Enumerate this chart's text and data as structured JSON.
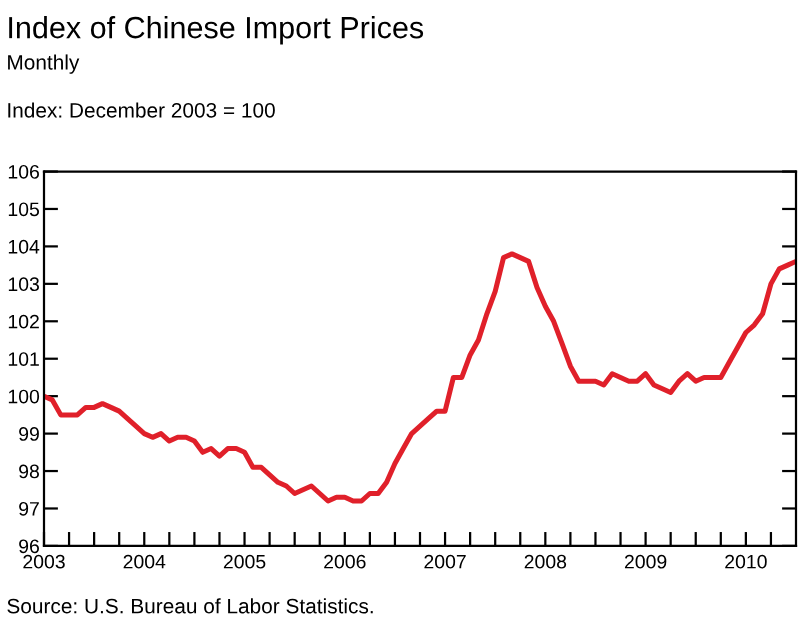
{
  "chart_data": {
    "type": "line",
    "title": "Index of Chinese Import Prices",
    "subtitle": "Monthly",
    "annotations": [
      "Index: December 2003 = 100",
      "Source: U.S. Bureau of Labor Statistics."
    ],
    "series": [
      {
        "color": "#e0202a",
        "x": [
          2003.0,
          2003.083,
          2003.167,
          2003.25,
          2003.333,
          2003.417,
          2003.5,
          2003.583,
          2003.667,
          2003.75,
          2003.833,
          2003.917,
          2004.0,
          2004.083,
          2004.167,
          2004.25,
          2004.333,
          2004.417,
          2004.5,
          2004.583,
          2004.667,
          2004.75,
          2004.833,
          2004.917,
          2005.0,
          2005.083,
          2005.167,
          2005.25,
          2005.333,
          2005.417,
          2005.5,
          2005.583,
          2005.667,
          2005.75,
          2005.833,
          2005.917,
          2006.0,
          2006.083,
          2006.167,
          2006.25,
          2006.333,
          2006.417,
          2006.5,
          2006.583,
          2006.667,
          2006.75,
          2006.833,
          2006.917,
          2007.0,
          2007.083,
          2007.167,
          2007.25,
          2007.333,
          2007.417,
          2007.5,
          2007.583,
          2007.667,
          2007.75,
          2007.833,
          2007.917,
          2008.0,
          2008.083,
          2008.167,
          2008.25,
          2008.333,
          2008.417,
          2008.5,
          2008.583,
          2008.667,
          2008.75,
          2008.833,
          2008.917,
          2009.0,
          2009.083,
          2009.167,
          2009.25,
          2009.333,
          2009.417,
          2009.5,
          2009.583,
          2009.667,
          2009.75,
          2009.833,
          2009.917,
          2010.0,
          2010.083,
          2010.167,
          2010.25,
          2010.333,
          2010.417,
          2010.5
        ],
        "values": [
          100.0,
          99.9,
          99.5,
          99.5,
          99.5,
          99.7,
          99.7,
          99.8,
          99.7,
          99.6,
          99.4,
          99.2,
          99.0,
          98.9,
          99.0,
          98.8,
          98.9,
          98.9,
          98.8,
          98.5,
          98.6,
          98.4,
          98.6,
          98.6,
          98.5,
          98.1,
          98.1,
          97.9,
          97.7,
          97.6,
          97.4,
          97.5,
          97.6,
          97.4,
          97.2,
          97.3,
          97.3,
          97.2,
          97.2,
          97.4,
          97.4,
          97.7,
          98.2,
          98.6,
          99.0,
          99.2,
          99.4,
          99.6,
          99.6,
          100.5,
          100.5,
          101.1,
          101.5,
          102.2,
          102.8,
          103.7,
          103.8,
          103.7,
          103.6,
          102.9,
          102.4,
          102.0,
          101.4,
          100.8,
          100.4,
          100.4,
          100.4,
          100.3,
          100.6,
          100.5,
          100.4,
          100.4,
          100.6,
          100.3,
          100.2,
          100.1,
          100.4,
          100.6,
          100.4,
          100.5,
          100.5,
          100.5,
          100.9,
          101.3,
          101.7,
          101.9,
          102.2,
          103.0,
          103.4,
          103.5,
          103.6
        ]
      }
    ],
    "xlim": [
      2003,
      2010.5
    ],
    "xticks": [
      2003,
      {
        "value": 2003.25,
        "label": null
      },
      {
        "value": 2003.5,
        "label": null
      },
      {
        "value": 2003.75,
        "label": null
      },
      2004,
      {
        "value": 2004.25,
        "label": null
      },
      {
        "value": 2004.5,
        "label": null
      },
      {
        "value": 2004.75,
        "label": null
      },
      2005,
      {
        "value": 2005.25,
        "label": null
      },
      {
        "value": 2005.5,
        "label": null
      },
      {
        "value": 2005.75,
        "label": null
      },
      2006,
      {
        "value": 2006.25,
        "label": null
      },
      {
        "value": 2006.5,
        "label": null
      },
      {
        "value": 2006.75,
        "label": null
      },
      2007,
      {
        "value": 2007.25,
        "label": null
      },
      {
        "value": 2007.5,
        "label": null
      },
      {
        "value": 2007.75,
        "label": null
      },
      2008,
      {
        "value": 2008.25,
        "label": null
      },
      {
        "value": 2008.5,
        "label": null
      },
      {
        "value": 2008.75,
        "label": null
      },
      2009,
      {
        "value": 2009.25,
        "label": null
      },
      {
        "value": 2009.5,
        "label": null
      },
      {
        "value": 2009.75,
        "label": null
      },
      2010,
      {
        "value": 2010.25,
        "label": null
      }
    ],
    "ylim": [
      96,
      106
    ],
    "yticks": [
      96,
      97,
      98,
      99,
      100,
      101,
      102,
      103,
      104,
      105,
      106
    ],
    "grid": false,
    "marker": "none",
    "line_style": "solid"
  }
}
